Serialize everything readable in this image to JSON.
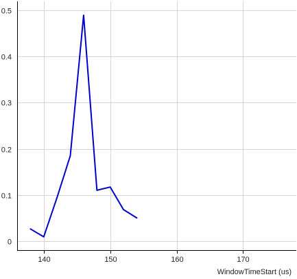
{
  "chart_data": {
    "type": "line",
    "title": "",
    "xlabel": "WindowTimeStart (us)",
    "ylabel": "",
    "xlim": [
      136,
      178
    ],
    "ylim": [
      -0.02,
      0.52
    ],
    "grid": true,
    "x_ticks": [
      140,
      150,
      160,
      170
    ],
    "y_ticks": [
      0,
      0.1,
      0.2,
      0.3,
      0.4,
      0.5
    ],
    "x_tick_labels": [
      "140",
      "150",
      "160",
      "170"
    ],
    "y_tick_labels": [
      "0",
      "0.1",
      "0.2",
      "0.3",
      "0.4",
      "0.5"
    ],
    "series": [
      {
        "color": "#0000cc",
        "x": [
          138,
          140,
          142,
          144,
          146,
          148,
          150,
          152,
          154
        ],
        "y": [
          0.026,
          0.009,
          0.094,
          0.185,
          0.49,
          0.11,
          0.117,
          0.068,
          0.05
        ]
      }
    ],
    "colors": {
      "axis": "#000000",
      "grid": "#d4d4d4",
      "line": "#0000cc"
    }
  }
}
